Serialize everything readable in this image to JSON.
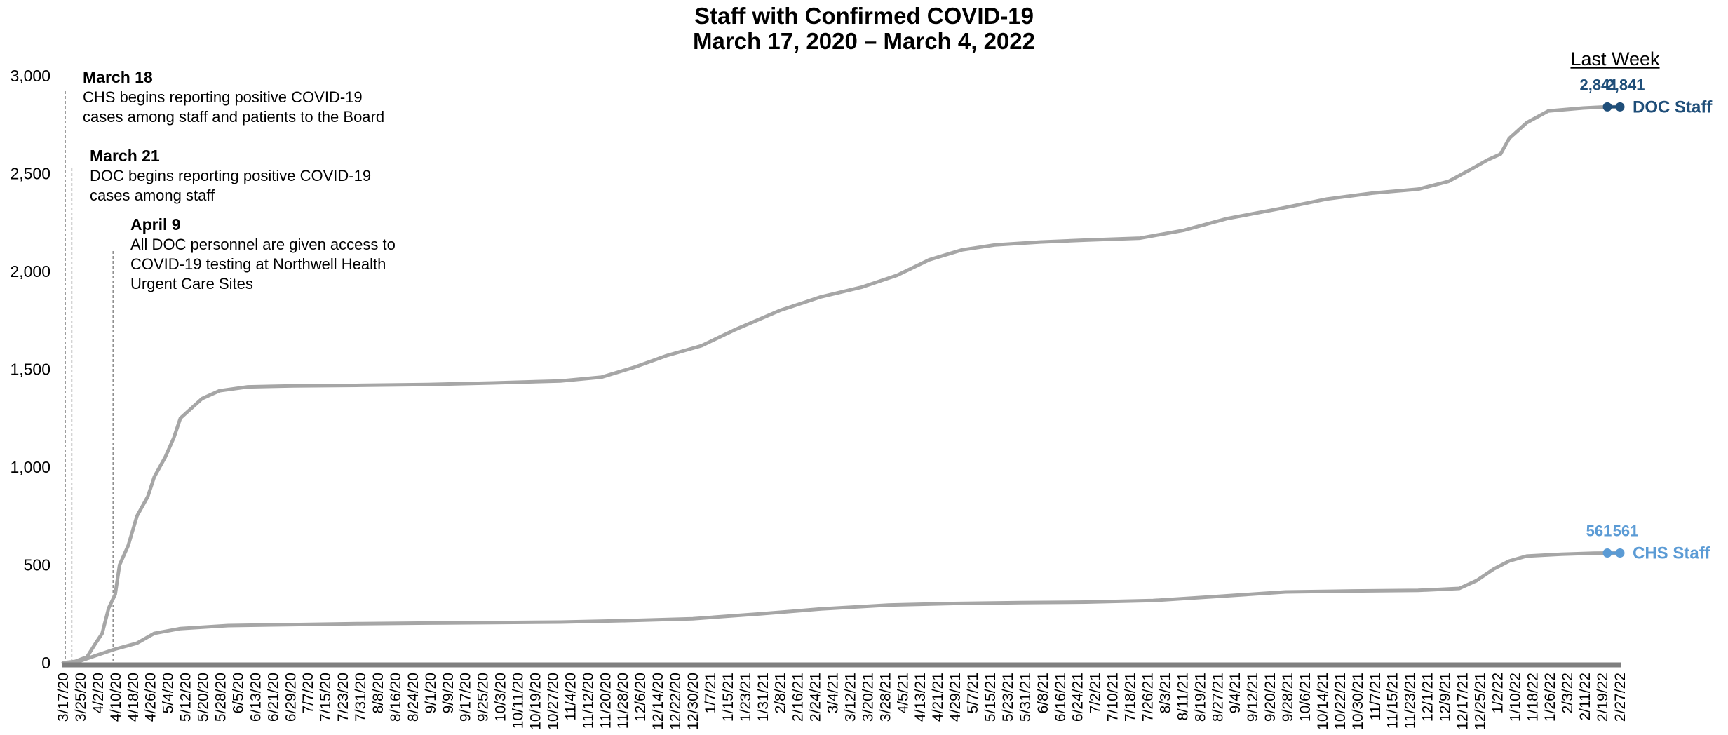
{
  "chart_data": {
    "type": "line",
    "title": "Staff with Confirmed COVID-19",
    "subtitle": "March 17, 2020 – March 4, 2022",
    "xlabel": "",
    "ylabel": "",
    "ylim": [
      0,
      3000
    ],
    "yticks": [
      "0",
      "500",
      "1,000",
      "1,500",
      "2,000",
      "2,500",
      "3,000"
    ],
    "ytick_values": [
      0,
      500,
      1000,
      1500,
      2000,
      2500,
      3000
    ],
    "x_start": "2020-03-17",
    "x_end": "2022-03-04",
    "x_tick_labels": [
      "3/17/20",
      "3/25/20",
      "4/2/20",
      "4/10/20",
      "4/18/20",
      "4/26/20",
      "5/4/20",
      "5/12/20",
      "5/20/20",
      "5/28/20",
      "6/5/20",
      "6/13/20",
      "6/21/20",
      "6/29/20",
      "7/7/20",
      "7/15/20",
      "7/23/20",
      "7/31/20",
      "8/8/20",
      "8/16/20",
      "8/24/20",
      "9/1/20",
      "9/9/20",
      "9/17/20",
      "9/25/20",
      "10/3/20",
      "10/11/20",
      "10/19/20",
      "10/27/20",
      "11/4/20",
      "11/12/20",
      "11/20/20",
      "11/28/20",
      "12/6/20",
      "12/14/20",
      "12/22/20",
      "12/30/20",
      "1/7/21",
      "1/15/21",
      "1/23/21",
      "1/31/21",
      "2/8/21",
      "2/16/21",
      "2/24/21",
      "3/4/21",
      "3/12/21",
      "3/20/21",
      "3/28/21",
      "4/5/21",
      "4/13/21",
      "4/21/21",
      "4/29/21",
      "5/7/21",
      "5/15/21",
      "5/23/21",
      "5/31/21",
      "6/8/21",
      "6/16/21",
      "6/24/21",
      "7/2/21",
      "7/10/21",
      "7/18/21",
      "7/26/21",
      "8/3/21",
      "8/11/21",
      "8/19/21",
      "8/27/21",
      "9/4/21",
      "9/12/21",
      "9/20/21",
      "9/28/21",
      "10/6/21",
      "10/14/21",
      "10/22/21",
      "10/30/21",
      "11/7/21",
      "11/15/21",
      "11/23/21",
      "12/1/21",
      "12/9/21",
      "12/17/21",
      "12/25/21",
      "1/2/22",
      "1/10/22",
      "1/18/22",
      "1/26/22",
      "2/3/22",
      "2/11/22",
      "2/19/22",
      "2/27/22"
    ],
    "series": [
      {
        "name": "DOC Staff",
        "color": "#1f4e79",
        "line_color": "#a6a6a6",
        "points": [
          [
            "2020-03-21",
            0
          ],
          [
            "2020-03-28",
            30
          ],
          [
            "2020-04-01",
            100
          ],
          [
            "2020-04-04",
            150
          ],
          [
            "2020-04-07",
            280
          ],
          [
            "2020-04-10",
            350
          ],
          [
            "2020-04-12",
            500
          ],
          [
            "2020-04-16",
            600
          ],
          [
            "2020-04-20",
            750
          ],
          [
            "2020-04-25",
            850
          ],
          [
            "2020-04-28",
            950
          ],
          [
            "2020-05-03",
            1050
          ],
          [
            "2020-05-07",
            1150
          ],
          [
            "2020-05-10",
            1250
          ],
          [
            "2020-05-15",
            1300
          ],
          [
            "2020-05-20",
            1350
          ],
          [
            "2020-05-28",
            1390
          ],
          [
            "2020-06-10",
            1410
          ],
          [
            "2020-07-01",
            1415
          ],
          [
            "2020-08-01",
            1418
          ],
          [
            "2020-09-01",
            1422
          ],
          [
            "2020-10-01",
            1430
          ],
          [
            "2020-11-01",
            1440
          ],
          [
            "2020-11-20",
            1460
          ],
          [
            "2020-12-05",
            1510
          ],
          [
            "2020-12-20",
            1570
          ],
          [
            "2021-01-05",
            1620
          ],
          [
            "2021-01-20",
            1700
          ],
          [
            "2021-02-10",
            1800
          ],
          [
            "2021-03-01",
            1870
          ],
          [
            "2021-03-20",
            1920
          ],
          [
            "2021-04-05",
            1980
          ],
          [
            "2021-04-20",
            2060
          ],
          [
            "2021-05-05",
            2110
          ],
          [
            "2021-05-20",
            2135
          ],
          [
            "2021-06-10",
            2150
          ],
          [
            "2021-07-01",
            2160
          ],
          [
            "2021-07-26",
            2170
          ],
          [
            "2021-08-15",
            2210
          ],
          [
            "2021-09-04",
            2270
          ],
          [
            "2021-09-28",
            2320
          ],
          [
            "2021-10-20",
            2370
          ],
          [
            "2021-11-10",
            2400
          ],
          [
            "2021-12-01",
            2420
          ],
          [
            "2021-12-15",
            2460
          ],
          [
            "2021-12-25",
            2520
          ],
          [
            "2022-01-02",
            2570
          ],
          [
            "2022-01-08",
            2600
          ],
          [
            "2022-01-12",
            2680
          ],
          [
            "2022-01-20",
            2760
          ],
          [
            "2022-01-30",
            2820
          ],
          [
            "2022-02-15",
            2835
          ],
          [
            "2022-02-25",
            2841
          ],
          [
            "2022-03-04",
            2841
          ]
        ]
      },
      {
        "name": "CHS Staff",
        "color": "#5b9bd5",
        "line_color": "#a6a6a6",
        "points": [
          [
            "2020-03-17",
            0
          ],
          [
            "2020-03-25",
            10
          ],
          [
            "2020-04-02",
            40
          ],
          [
            "2020-04-10",
            70
          ],
          [
            "2020-04-20",
            100
          ],
          [
            "2020-04-28",
            150
          ],
          [
            "2020-05-10",
            175
          ],
          [
            "2020-06-01",
            190
          ],
          [
            "2020-07-01",
            195
          ],
          [
            "2020-08-01",
            200
          ],
          [
            "2020-09-01",
            203
          ],
          [
            "2020-10-01",
            205
          ],
          [
            "2020-11-01",
            208
          ],
          [
            "2020-12-01",
            215
          ],
          [
            "2021-01-01",
            225
          ],
          [
            "2021-02-01",
            250
          ],
          [
            "2021-03-01",
            275
          ],
          [
            "2021-04-01",
            295
          ],
          [
            "2021-05-01",
            303
          ],
          [
            "2021-06-01",
            307
          ],
          [
            "2021-07-01",
            310
          ],
          [
            "2021-08-01",
            318
          ],
          [
            "2021-09-01",
            340
          ],
          [
            "2021-10-01",
            362
          ],
          [
            "2021-11-01",
            367
          ],
          [
            "2021-12-01",
            370
          ],
          [
            "2021-12-20",
            380
          ],
          [
            "2021-12-28",
            420
          ],
          [
            "2022-01-05",
            480
          ],
          [
            "2022-01-12",
            520
          ],
          [
            "2022-01-20",
            545
          ],
          [
            "2022-02-05",
            555
          ],
          [
            "2022-02-20",
            560
          ],
          [
            "2022-03-04",
            561
          ]
        ]
      }
    ],
    "last_week": {
      "label": "Last Week",
      "doc_values": [
        "2,841",
        "2,841"
      ],
      "chs_values": [
        "561",
        "561"
      ],
      "doc_numbers": [
        2841,
        2841
      ],
      "chs_numbers": [
        561,
        561
      ],
      "dates": [
        "2022-02-25",
        "2022-03-04"
      ]
    },
    "annotations": [
      {
        "date": "2020-03-18",
        "title": "March 18",
        "lines": [
          "CHS begins reporting positive COVID-19",
          "cases among staff and patients to the Board"
        ]
      },
      {
        "date": "2020-03-21",
        "title": "March 21",
        "lines": [
          "DOC begins reporting positive COVID-19",
          "cases among staff"
        ]
      },
      {
        "date": "2020-04-09",
        "title": "April 9",
        "lines": [
          "All DOC personnel are given access to",
          "COVID-19 testing at Northwell Health",
          "Urgent Care Sites"
        ]
      }
    ],
    "grid": false,
    "legend": "end-of-line labels"
  }
}
